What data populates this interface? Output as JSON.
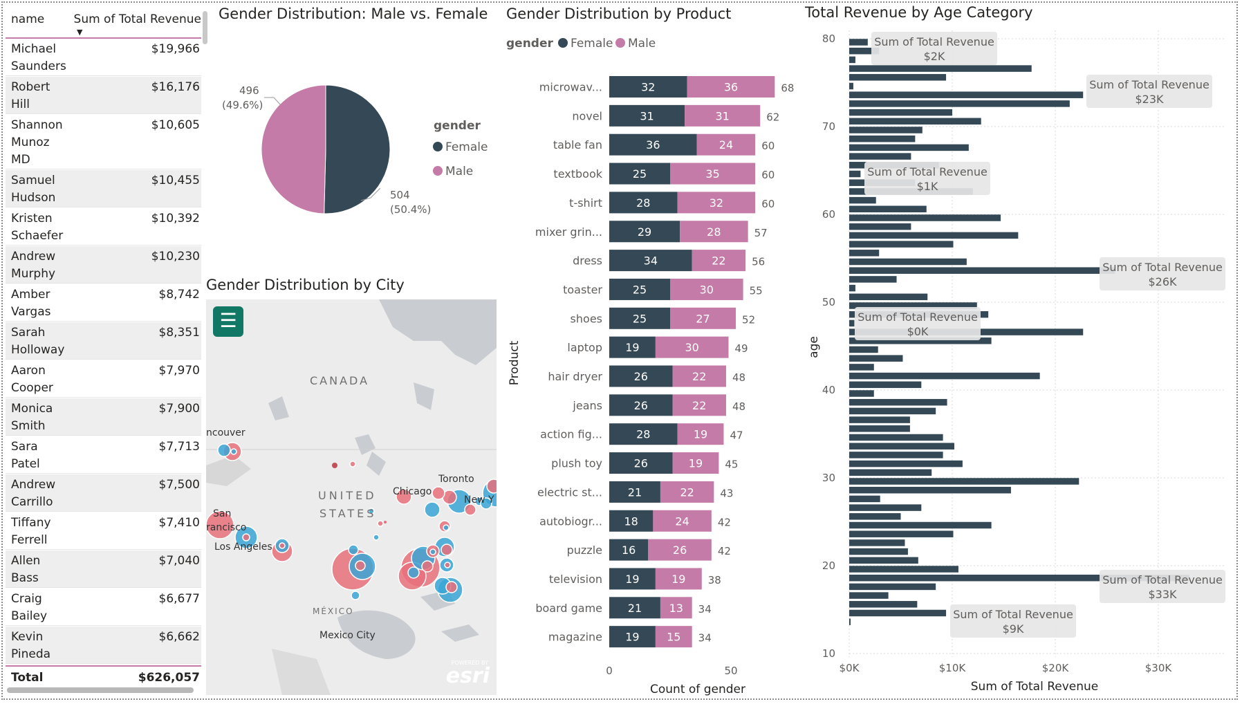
{
  "table": {
    "col_name": "name",
    "col_value": "Sum of Total Revenue",
    "rows": [
      {
        "name": "Michael Saunders",
        "value": "$19,966"
      },
      {
        "name": "Robert Hill",
        "value": "$16,176"
      },
      {
        "name": "Shannon Munoz MD",
        "value": "$10,605"
      },
      {
        "name": "Samuel Hudson",
        "value": "$10,455"
      },
      {
        "name": "Kristen Schaefer",
        "value": "$10,392"
      },
      {
        "name": "Andrew Murphy",
        "value": "$10,230"
      },
      {
        "name": "Amber Vargas",
        "value": "$8,742"
      },
      {
        "name": "Sarah Holloway",
        "value": "$8,351"
      },
      {
        "name": "Aaron Cooper",
        "value": "$7,970"
      },
      {
        "name": "Monica Smith",
        "value": "$7,900"
      },
      {
        "name": "Sara Patel",
        "value": "$7,713"
      },
      {
        "name": "Andrew Carrillo",
        "value": "$7,500"
      },
      {
        "name": "Tiffany Ferrell",
        "value": "$7,410"
      },
      {
        "name": "Allen Bass",
        "value": "$7,040"
      },
      {
        "name": "Craig Bailey",
        "value": "$6,677"
      },
      {
        "name": "Kevin Pineda",
        "value": "$6,662"
      }
    ],
    "total_label": "Total",
    "total_value": "$626,057"
  },
  "map": {
    "title": "Gender Distribution by City",
    "labels": [
      "CANADA",
      "UNITED",
      "STATES",
      "Chicago",
      "Toronto",
      "New Y",
      "ncouver",
      "San",
      "rancisco",
      "Los Angeles",
      "MÉXICO",
      "Mexico City"
    ],
    "powered_by": "POWERED BY",
    "esri": "esri"
  },
  "colors": {
    "female": "#344955",
    "male": "#c47ba7",
    "map_female": "#3aa6d6",
    "map_male": "#e8707a",
    "accent": "#117865"
  },
  "chart_data": [
    {
      "type": "pie",
      "title": "Gender Distribution: Male vs. Female",
      "legend_title": "gender",
      "legend_position": "right",
      "slices": [
        {
          "label": "Female",
          "value": 504,
          "display": "504",
          "pct": "(50.4%)"
        },
        {
          "label": "Male",
          "value": 496,
          "display": "496",
          "pct": "(49.6%)"
        }
      ]
    },
    {
      "type": "bar",
      "orientation": "horizontal",
      "stacked": true,
      "title": "Gender Distribution by Product",
      "legend_title": "gender",
      "legend_position": "top-left",
      "xlabel": "Count of gender",
      "ylabel": "Product",
      "xlim": [
        0,
        75
      ],
      "xticks": [
        0,
        50
      ],
      "categories": [
        "microwav...",
        "novel",
        "table fan",
        "textbook",
        "t-shirt",
        "mixer grin...",
        "dress",
        "toaster",
        "shoes",
        "laptop",
        "hair dryer",
        "jeans",
        "action fig...",
        "plush toy",
        "electric st...",
        "autobiogr...",
        "puzzle",
        "television",
        "board game",
        "magazine"
      ],
      "series": [
        {
          "name": "Female",
          "values": [
            32,
            31,
            36,
            25,
            28,
            29,
            34,
            25,
            25,
            19,
            26,
            26,
            28,
            26,
            21,
            18,
            16,
            19,
            21,
            19
          ]
        },
        {
          "name": "Male",
          "values": [
            36,
            31,
            24,
            35,
            32,
            28,
            22,
            30,
            27,
            30,
            22,
            22,
            19,
            19,
            22,
            24,
            26,
            19,
            13,
            15
          ]
        }
      ],
      "totals": [
        68,
        62,
        60,
        60,
        60,
        57,
        56,
        55,
        52,
        49,
        48,
        48,
        47,
        45,
        43,
        42,
        42,
        38,
        34,
        34
      ]
    },
    {
      "type": "bar",
      "orientation": "horizontal",
      "title": "Total Revenue by Age Category",
      "xlabel": "Sum of Total Revenue",
      "ylabel": "age",
      "xlim": [
        0,
        37000
      ],
      "ylim": [
        10,
        81
      ],
      "xticks": [
        {
          "v": 0,
          "label": "$0K"
        },
        {
          "v": 10000,
          "label": "$10K"
        },
        {
          "v": 20000,
          "label": "$20K"
        },
        {
          "v": 30000,
          "label": "$30K"
        }
      ],
      "yticks": [
        10,
        20,
        30,
        40,
        50,
        60,
        70,
        80
      ],
      "grid": true,
      "ages": [
        80,
        79,
        78,
        77,
        76,
        75,
        74,
        73,
        72,
        71,
        70,
        69,
        68,
        67,
        66,
        65,
        64,
        63,
        62,
        61,
        60,
        59,
        58,
        57,
        56,
        55,
        54,
        53,
        52,
        51,
        50,
        49,
        48,
        47,
        46,
        45,
        44,
        43,
        42,
        41,
        40,
        39,
        38,
        37,
        36,
        35,
        34,
        33,
        32,
        31,
        30,
        29,
        28,
        27,
        26,
        25,
        24,
        23,
        22,
        21,
        20,
        19,
        18,
        17,
        16,
        15,
        14
      ],
      "values": [
        1800,
        2900,
        600,
        17700,
        9400,
        400,
        22700,
        21400,
        10000,
        12800,
        7100,
        6400,
        11600,
        6000,
        8700,
        1100,
        6400,
        12000,
        2600,
        7500,
        14700,
        6000,
        16400,
        10100,
        2900,
        11400,
        25800,
        4600,
        600,
        7600,
        12400,
        13500,
        500,
        22700,
        13800,
        2800,
        5200,
        2400,
        18500,
        7000,
        2400,
        9500,
        8400,
        5900,
        5900,
        9100,
        10200,
        9100,
        11000,
        8000,
        22300,
        15700,
        3000,
        7000,
        5000,
        13800,
        10100,
        5400,
        5700,
        6700,
        10600,
        33000,
        8400,
        3800,
        6600,
        9400,
        14
      ]
    },
    {
      "type": "scatter",
      "title": "",
      "note": "tooltip callouts on age chart",
      "tooltips": [
        {
          "label": "Sum of Total Revenue",
          "value": "$2K"
        },
        {
          "label": "Sum of Total Revenue",
          "value": "$23K"
        },
        {
          "label": "Sum of Total Revenue",
          "value": "$1K"
        },
        {
          "label": "Sum of Total Revenue",
          "value": "$26K"
        },
        {
          "label": "Sum of Total Revenue",
          "value": "$0K"
        },
        {
          "label": "Sum of Total Revenue",
          "value": "$33K"
        },
        {
          "label": "Sum of Total Revenue",
          "value": "$9K"
        }
      ]
    }
  ]
}
